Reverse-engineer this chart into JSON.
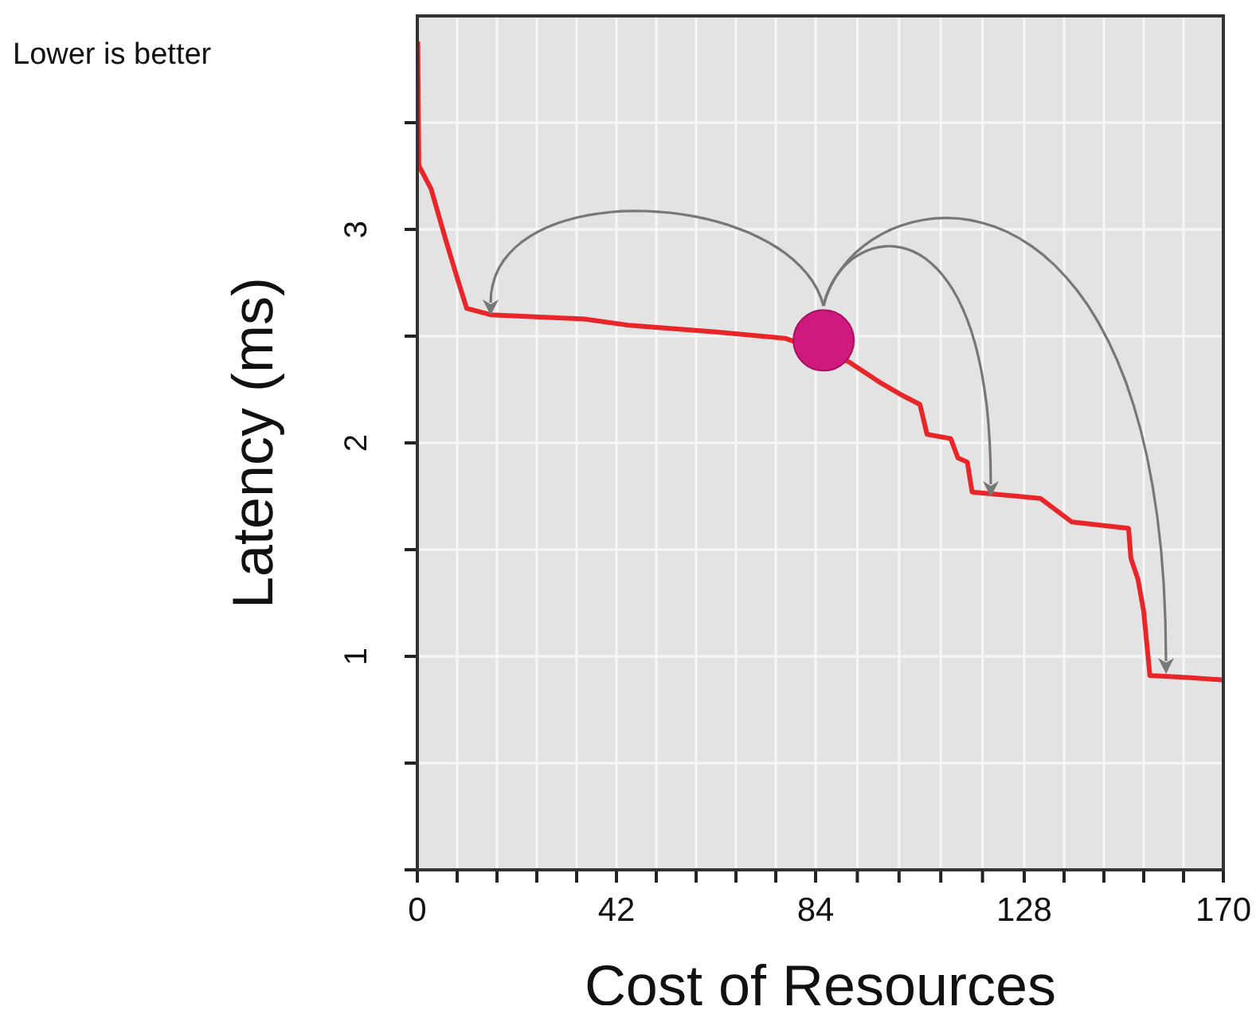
{
  "chart_data": {
    "type": "line",
    "xlabel": "Cost of Resources",
    "ylabel": "Latency (ms)",
    "annotations": [
      "Lower is better"
    ],
    "series": [
      {
        "color": "#e8262a",
        "marker": "none",
        "x": [
          0.1,
          0.3,
          2.9,
          6,
          8.3,
          10.4,
          15.5,
          35.2,
          45,
          63,
          77.6,
          91,
          97.8,
          102.5,
          106,
          107.5,
          112.5,
          114,
          116,
          117,
          131.4,
          138,
          150,
          150.5,
          152,
          153.2,
          154.5,
          163,
          169.7
        ],
        "values": [
          3.88,
          3.3,
          3.19,
          2.95,
          2.78,
          2.63,
          2.6,
          2.58,
          2.55,
          2.52,
          2.49,
          2.38,
          2.28,
          2.22,
          2.18,
          2.04,
          2.02,
          1.93,
          1.91,
          1.77,
          1.74,
          1.63,
          1.6,
          1.46,
          1.36,
          1.21,
          0.91,
          0.9,
          0.89
        ]
      },
      {
        "type": "scatter",
        "color": "#d0197f",
        "marker": "circle",
        "x": [
          85.7
        ],
        "values": [
          2.48
        ]
      }
    ],
    "xlim": [
      0,
      170
    ],
    "xticks": [
      0,
      {
        "value": 8.4,
        "label": null
      },
      {
        "value": 16.8,
        "label": null
      },
      {
        "value": 25.2,
        "label": null
      },
      {
        "value": 33.6,
        "label": null
      },
      42,
      {
        "value": 50.4,
        "label": null
      },
      {
        "value": 58.8,
        "label": null
      },
      {
        "value": 67.2,
        "label": null
      },
      {
        "value": 75.6,
        "label": null
      },
      84,
      {
        "value": 92.8,
        "label": null
      },
      {
        "value": 101.6,
        "label": null
      },
      {
        "value": 110.4,
        "label": null
      },
      {
        "value": 119.2,
        "label": null
      },
      128,
      {
        "value": 136.4,
        "label": null
      },
      {
        "value": 144.8,
        "label": null
      },
      {
        "value": 153.2,
        "label": null
      },
      {
        "value": 161.6,
        "label": null
      },
      170
    ],
    "ylim": [
      0,
      4
    ],
    "yticks": [
      {
        "value": 0,
        "label": null
      },
      {
        "value": 0.5,
        "label": null
      },
      1,
      {
        "value": 1.5,
        "label": null
      },
      2,
      {
        "value": 2.5,
        "label": null
      },
      3,
      {
        "value": 3.5,
        "label": null
      }
    ],
    "grid": true
  }
}
